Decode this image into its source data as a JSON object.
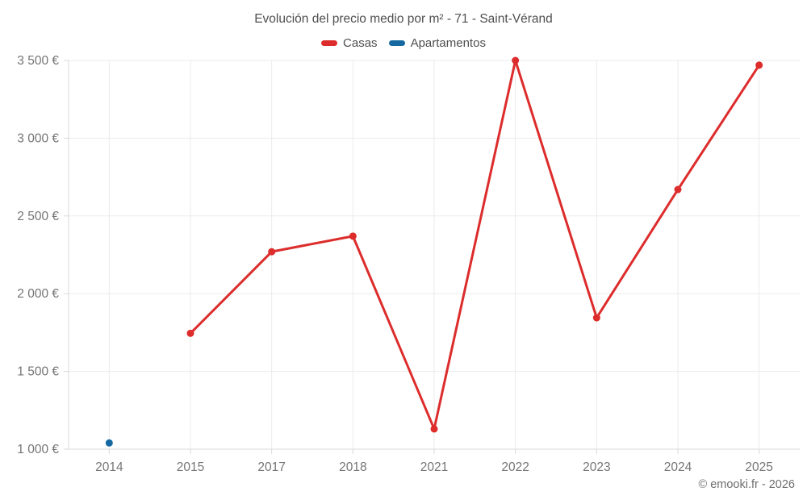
{
  "title": "Evolución del precio medio por m² - 71 - Saint-Vérand",
  "legend": [
    {
      "label": "Casas",
      "color": "#dd2c2c"
    },
    {
      "label": "Apartamentos",
      "color": "#1569a0"
    }
  ],
  "footer": "© emooki.fr - 2026",
  "colors": {
    "grid": "#ebebeb",
    "axis": "#d9d9d9",
    "tick_text": "#757575",
    "title_text": "#4f4f4f"
  },
  "chart_data": {
    "type": "line",
    "title": "Evolución del precio medio por m² - 71 - Saint-Vérand",
    "xlabel": "",
    "ylabel": "",
    "categories": [
      "2014",
      "2015",
      "2017",
      "2018",
      "2021",
      "2022",
      "2023",
      "2024",
      "2025"
    ],
    "series": [
      {
        "name": "Casas",
        "color": "#dd2c2c",
        "values": [
          null,
          1745,
          2270,
          2370,
          1130,
          3500,
          1845,
          2670,
          3470
        ]
      },
      {
        "name": "Apartamentos",
        "color": "#1569a0",
        "values": [
          1040,
          null,
          null,
          null,
          null,
          null,
          null,
          null,
          null
        ]
      }
    ],
    "ylim": [
      1000,
      3500
    ],
    "yticks": [
      {
        "value": 1000,
        "label": "1 000 €"
      },
      {
        "value": 1500,
        "label": "1 500 €"
      },
      {
        "value": 2000,
        "label": "2 000 €"
      },
      {
        "value": 2500,
        "label": "2 500 €"
      },
      {
        "value": 3000,
        "label": "3 000 €"
      },
      {
        "value": 3500,
        "label": "3 500 €"
      }
    ],
    "grid": true,
    "legend_position": "top"
  }
}
